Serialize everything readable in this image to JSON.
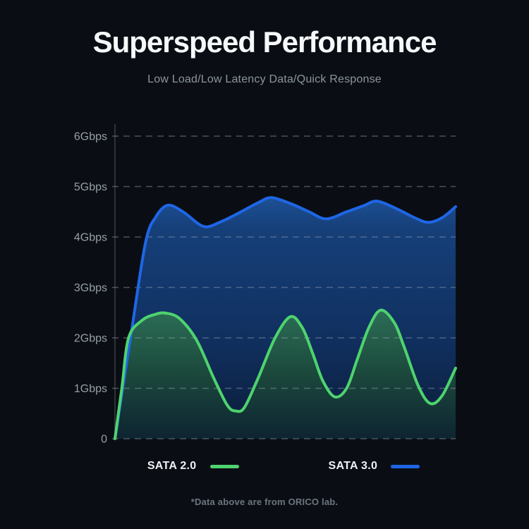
{
  "header": {
    "title": "Superspeed Performance",
    "subtitle": "Low Load/Low Latency Data/Quick Response"
  },
  "legend": {
    "items": [
      {
        "label": "SATA 2.0",
        "color": "#4ed36e"
      },
      {
        "label": "SATA 3.0",
        "color": "#1f66e6"
      }
    ]
  },
  "footer": {
    "note": "*Data above are from ORICO lab."
  },
  "colors": {
    "background": "#0a0e14",
    "title": "#f6f8fa",
    "subtitle": "#8d959d",
    "tick_label": "#969ea7",
    "gridline": "#9aa5b1",
    "axis": "#9aa5b1",
    "sata_2_0": "#4ed36e",
    "sata_3_0": "#1f66e6"
  },
  "chart_data": {
    "type": "area",
    "title": "Superspeed Performance",
    "subtitle": "Low Load/Low Latency Data/Quick Response",
    "xlabel": "",
    "ylabel": "",
    "x_range": [
      0,
      100
    ],
    "y_range": [
      0,
      6.21
    ],
    "grid": "dashed-horizontal",
    "legend_position": "bottom",
    "y_ticks": [
      {
        "label": "6Gbps",
        "value": 6
      },
      {
        "label": "5Gbps",
        "value": 5
      },
      {
        "label": "4Gbps",
        "value": 4
      },
      {
        "label": "3Gbps",
        "value": 3
      },
      {
        "label": "2Gbps",
        "value": 2
      },
      {
        "label": "1Gbps",
        "value": 1
      },
      {
        "label": "0",
        "value": 0
      }
    ],
    "unit": "Gbps",
    "series": [
      {
        "name": "SATA 3.0",
        "color": "#1f66e6",
        "points": [
          [
            0,
            0
          ],
          [
            5,
            2.2
          ],
          [
            9,
            3.9
          ],
          [
            12,
            4.4
          ],
          [
            15.5,
            4.63
          ],
          [
            20,
            4.5
          ],
          [
            26,
            4.21
          ],
          [
            31,
            4.3
          ],
          [
            37,
            4.5
          ],
          [
            42,
            4.68
          ],
          [
            46,
            4.78
          ],
          [
            52,
            4.65
          ],
          [
            57,
            4.5
          ],
          [
            62,
            4.36
          ],
          [
            68,
            4.5
          ],
          [
            73,
            4.62
          ],
          [
            77,
            4.71
          ],
          [
            83,
            4.55
          ],
          [
            88,
            4.38
          ],
          [
            92,
            4.29
          ],
          [
            96,
            4.38
          ],
          [
            100,
            4.6
          ]
        ]
      },
      {
        "name": "SATA 2.0",
        "color": "#4ed36e",
        "points": [
          [
            0,
            0
          ],
          [
            2,
            1.0
          ],
          [
            4,
            2.0
          ],
          [
            8,
            2.35
          ],
          [
            12,
            2.47
          ],
          [
            15,
            2.49
          ],
          [
            19,
            2.38
          ],
          [
            24,
            1.95
          ],
          [
            29,
            1.2
          ],
          [
            33,
            0.66
          ],
          [
            35.5,
            0.55
          ],
          [
            38,
            0.62
          ],
          [
            42,
            1.2
          ],
          [
            47,
            2.0
          ],
          [
            51.5,
            2.42
          ],
          [
            55,
            2.2
          ],
          [
            58,
            1.7
          ],
          [
            61,
            1.15
          ],
          [
            64.5,
            0.83
          ],
          [
            68,
            1.0
          ],
          [
            71,
            1.55
          ],
          [
            74.5,
            2.2
          ],
          [
            78,
            2.55
          ],
          [
            82,
            2.3
          ],
          [
            85,
            1.8
          ],
          [
            89,
            1.05
          ],
          [
            92.5,
            0.7
          ],
          [
            96,
            0.85
          ],
          [
            100,
            1.4
          ]
        ]
      }
    ]
  }
}
